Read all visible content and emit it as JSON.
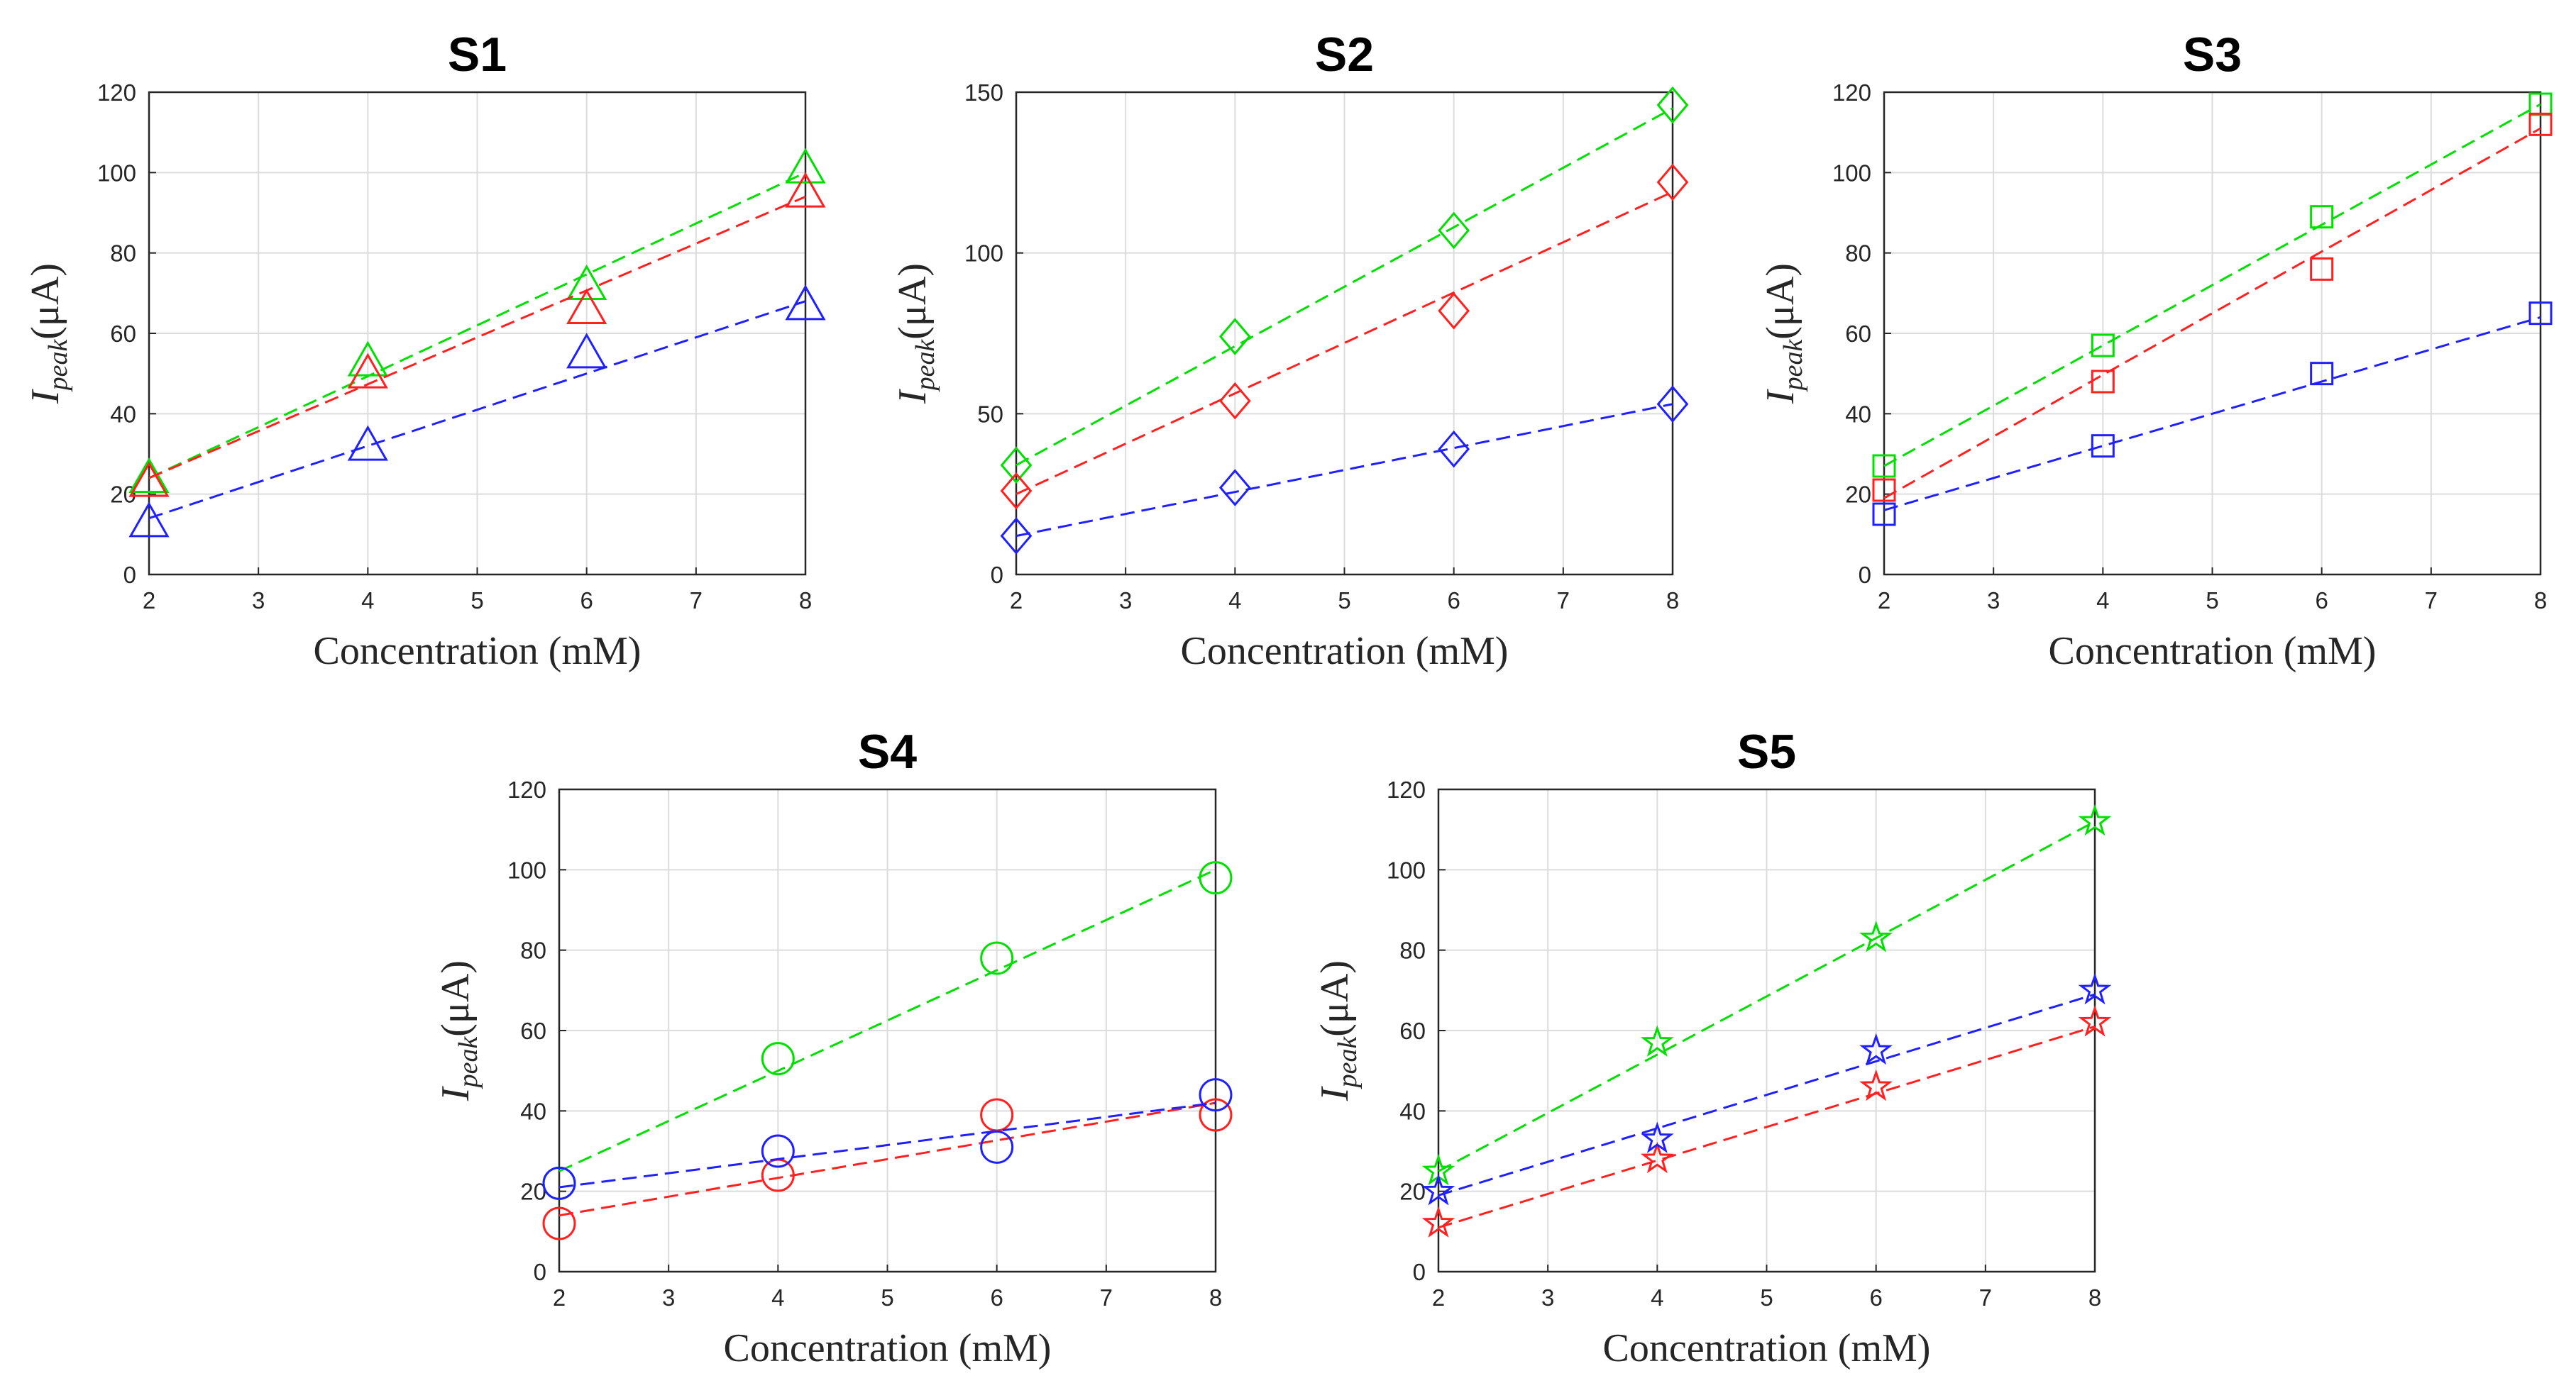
{
  "colors": {
    "green": "#00e000",
    "red": "#ff2020",
    "blue": "#2020ff"
  },
  "chart_data": [
    {
      "type": "scatter",
      "title": "S1",
      "xlabel": "Concentration (mM)",
      "ylabel_main": "I",
      "ylabel_sub": "peak",
      "ylabel_unit": "(μA)",
      "xlim": [
        2,
        8
      ],
      "ylim": [
        0,
        120
      ],
      "xticks": [
        2,
        3,
        4,
        5,
        6,
        7,
        8
      ],
      "yticks": [
        0,
        20,
        40,
        60,
        80,
        100,
        120
      ],
      "marker": "triangle",
      "grid": true,
      "series": [
        {
          "name": "green",
          "color": "green",
          "x": [
            2,
            4,
            6,
            8
          ],
          "y": [
            24,
            53,
            72,
            101
          ],
          "fit": [
            24,
            100
          ]
        },
        {
          "name": "red",
          "color": "red",
          "x": [
            2,
            4,
            6,
            8
          ],
          "y": [
            23,
            50,
            66,
            95
          ],
          "fit": [
            24,
            94
          ]
        },
        {
          "name": "blue",
          "color": "blue",
          "x": [
            2,
            4,
            6,
            8
          ],
          "y": [
            13,
            32,
            55,
            67
          ],
          "fit": [
            14,
            68
          ]
        }
      ]
    },
    {
      "type": "scatter",
      "title": "S2",
      "xlabel": "Concentration (mM)",
      "ylabel_main": "I",
      "ylabel_sub": "peak",
      "ylabel_unit": "(μA)",
      "xlim": [
        2,
        8
      ],
      "ylim": [
        0,
        150
      ],
      "xticks": [
        2,
        3,
        4,
        5,
        6,
        7,
        8
      ],
      "yticks": [
        0,
        50,
        100,
        150
      ],
      "marker": "diamond",
      "grid": true,
      "series": [
        {
          "name": "green",
          "color": "green",
          "x": [
            2,
            4,
            6,
            8
          ],
          "y": [
            34,
            74,
            107,
            146
          ],
          "fit": [
            34,
            145
          ]
        },
        {
          "name": "red",
          "color": "red",
          "x": [
            2,
            4,
            6,
            8
          ],
          "y": [
            26,
            54,
            82,
            122
          ],
          "fit": [
            25,
            119
          ]
        },
        {
          "name": "blue",
          "color": "blue",
          "x": [
            2,
            4,
            6,
            8
          ],
          "y": [
            12,
            27,
            39,
            53
          ],
          "fit": [
            12,
            53
          ]
        }
      ]
    },
    {
      "type": "scatter",
      "title": "S3",
      "xlabel": "Concentration (mM)",
      "ylabel_main": "I",
      "ylabel_sub": "peak",
      "ylabel_unit": "(μA)",
      "xlim": [
        2,
        8
      ],
      "ylim": [
        0,
        120
      ],
      "xticks": [
        2,
        3,
        4,
        5,
        6,
        7,
        8
      ],
      "yticks": [
        0,
        20,
        40,
        60,
        80,
        100,
        120
      ],
      "marker": "square",
      "grid": true,
      "series": [
        {
          "name": "green",
          "color": "green",
          "x": [
            2,
            4,
            6,
            8
          ],
          "y": [
            27,
            57,
            89,
            117
          ],
          "fit": [
            27,
            117
          ]
        },
        {
          "name": "red",
          "color": "red",
          "x": [
            2,
            4,
            6,
            8
          ],
          "y": [
            21,
            48,
            76,
            112
          ],
          "fit": [
            19,
            111
          ]
        },
        {
          "name": "blue",
          "color": "blue",
          "x": [
            2,
            4,
            6,
            8
          ],
          "y": [
            15,
            32,
            50,
            65
          ],
          "fit": [
            16,
            64
          ]
        }
      ]
    },
    {
      "type": "scatter",
      "title": "S4",
      "xlabel": "Concentration (mM)",
      "ylabel_main": "I",
      "ylabel_sub": "peak",
      "ylabel_unit": "(μA)",
      "xlim": [
        2,
        8
      ],
      "ylim": [
        0,
        120
      ],
      "xticks": [
        2,
        3,
        4,
        5,
        6,
        7,
        8
      ],
      "yticks": [
        0,
        20,
        40,
        60,
        80,
        100,
        120
      ],
      "marker": "circle",
      "grid": true,
      "series": [
        {
          "name": "green",
          "color": "green",
          "x": [
            2,
            4,
            6,
            8
          ],
          "y": [
            22,
            53,
            78,
            98
          ],
          "fit": [
            25,
            100
          ]
        },
        {
          "name": "red",
          "color": "red",
          "x": [
            2,
            4,
            6,
            8
          ],
          "y": [
            12,
            24,
            39,
            39
          ],
          "fit": [
            14,
            42
          ]
        },
        {
          "name": "blue",
          "color": "blue",
          "x": [
            2,
            4,
            6,
            8
          ],
          "y": [
            22,
            30,
            31,
            44
          ],
          "fit": [
            21,
            42
          ]
        }
      ]
    },
    {
      "type": "scatter",
      "title": "S5",
      "xlabel": "Concentration (mM)",
      "ylabel_main": "I",
      "ylabel_sub": "peak",
      "ylabel_unit": "(μA)",
      "xlim": [
        2,
        8
      ],
      "ylim": [
        0,
        120
      ],
      "xticks": [
        2,
        3,
        4,
        5,
        6,
        7,
        8
      ],
      "yticks": [
        0,
        20,
        40,
        60,
        80,
        100,
        120
      ],
      "marker": "star",
      "grid": true,
      "series": [
        {
          "name": "green",
          "color": "green",
          "x": [
            2,
            4,
            6,
            8
          ],
          "y": [
            25,
            57,
            83,
            112
          ],
          "fit": [
            25,
            112
          ]
        },
        {
          "name": "red",
          "color": "red",
          "x": [
            2,
            4,
            6,
            8
          ],
          "y": [
            12,
            28,
            46,
            62
          ],
          "fit": [
            11,
            61
          ]
        },
        {
          "name": "blue",
          "color": "blue",
          "x": [
            2,
            4,
            6,
            8
          ],
          "y": [
            20,
            33,
            55,
            70
          ],
          "fit": [
            19,
            69
          ]
        }
      ]
    }
  ]
}
